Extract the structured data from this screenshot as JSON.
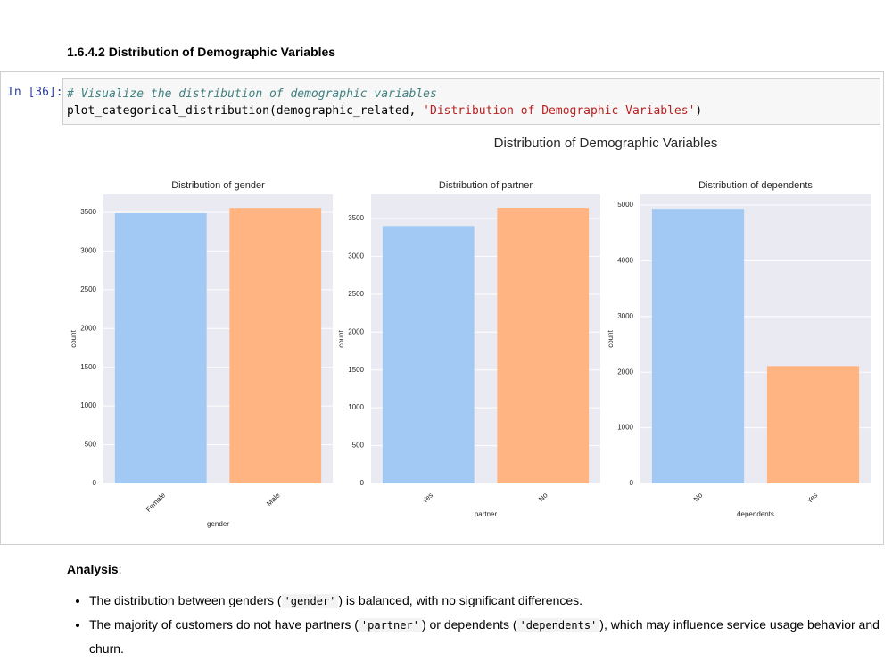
{
  "heading": "1.6.4.2  Distribution of Demographic Variables",
  "cell": {
    "prompt": "In [36]:",
    "code": [
      [
        "# Visualize the distribution of demographic variables"
      ],
      [
        "plot_categorical_distribution(demographic_related, ",
        "'Distribution of Demographic Variables'",
        ")"
      ]
    ]
  },
  "figure_title": "Distribution of Demographic Variables",
  "chart_data": [
    {
      "type": "bar",
      "title": "Distribution of gender",
      "categories": [
        "Female",
        "Male"
      ],
      "values": [
        3488,
        3555
      ],
      "colors": [
        "#a1c9f4",
        "#ffb482"
      ],
      "x_label": "gender",
      "y_label": "count",
      "ylim": [
        0,
        3730
      ],
      "yticks": [
        0,
        500,
        1000,
        1500,
        2000,
        2500,
        3000,
        3500
      ],
      "grid": true
    },
    {
      "type": "bar",
      "title": "Distribution of partner",
      "categories": [
        "Yes",
        "No"
      ],
      "values": [
        3402,
        3641
      ],
      "colors": [
        "#a1c9f4",
        "#ffb482"
      ],
      "x_label": "partner",
      "y_label": "count",
      "ylim": [
        0,
        3818
      ],
      "yticks": [
        0,
        500,
        1000,
        1500,
        2000,
        2500,
        3000,
        3500
      ],
      "grid": true
    },
    {
      "type": "bar",
      "title": "Distribution of dependents",
      "categories": [
        "No",
        "Yes"
      ],
      "values": [
        4933,
        2110
      ],
      "colors": [
        "#a1c9f4",
        "#ffb482"
      ],
      "x_label": "dependents",
      "y_label": "count",
      "ylim": [
        0,
        5192
      ],
      "yticks": [
        0,
        1000,
        2000,
        3000,
        4000,
        5000
      ],
      "grid": true
    }
  ],
  "analysis": {
    "label": "Analysis",
    "colon": ":",
    "bullets": [
      [
        "The distribution between genders (",
        "'gender'",
        ") is balanced, with no significant differences."
      ],
      [
        "The majority of customers do not have partners (",
        "'partner'",
        ") or dependents (",
        "'dependents'",
        "), which may influence service usage behavior and churn."
      ]
    ]
  }
}
